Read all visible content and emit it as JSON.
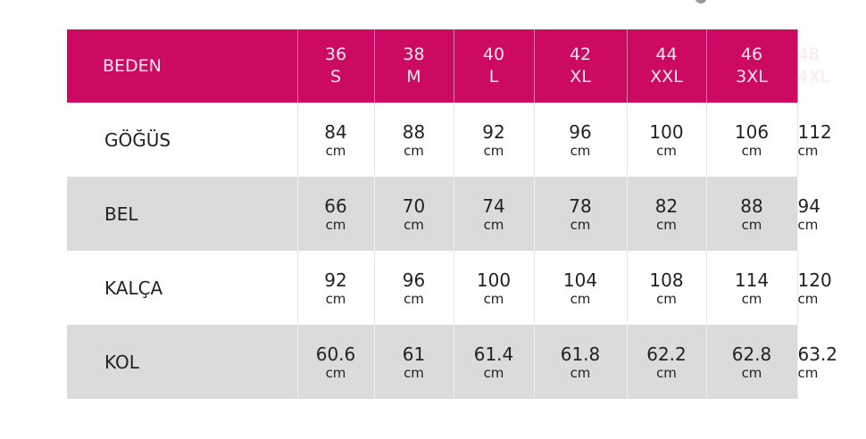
{
  "header": {
    "label": "BEDEN",
    "sizes": [
      {
        "num": "36",
        "letter": "S"
      },
      {
        "num": "38",
        "letter": "M"
      },
      {
        "num": "40",
        "letter": "L"
      },
      {
        "num": "42",
        "letter": "XL"
      },
      {
        "num": "44",
        "letter": "XXL"
      },
      {
        "num": "46",
        "letter": "3XL"
      },
      {
        "num": "48",
        "letter": "4XL"
      }
    ]
  },
  "unit": "cm",
  "rows": [
    {
      "label": "GÖĞÜS",
      "values": [
        "84",
        "88",
        "92",
        "96",
        "100",
        "106",
        "112"
      ]
    },
    {
      "label": "BEL",
      "values": [
        "66",
        "70",
        "74",
        "78",
        "82",
        "88",
        "94"
      ]
    },
    {
      "label": "KALÇA",
      "values": [
        "92",
        "96",
        "100",
        "104",
        "108",
        "114",
        "120"
      ]
    },
    {
      "label": "KOL",
      "values": [
        "60.6",
        "61",
        "61.4",
        "61.8",
        "62.2",
        "62.8",
        "63.2"
      ]
    }
  ],
  "colors": {
    "header": "#cc0a62",
    "gray_row": "#dcdbdb"
  }
}
